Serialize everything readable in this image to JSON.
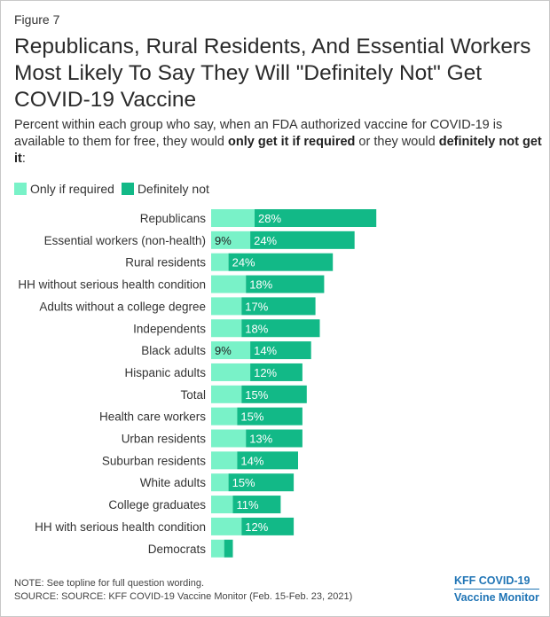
{
  "figure_label": "Figure 7",
  "title": "Republicans, Rural Residents, And Essential Workers Most Likely To Say They Will \"Definitely Not\" Get COVID-19 Vaccine",
  "subtitle": {
    "part1": "Percent within each group who say, when an FDA authorized vaccine for COVID-19 is available to them for free, they would ",
    "bold1": "only get it if required",
    "part2": " or they would ",
    "bold2": "definitely not get it",
    "part3": ":"
  },
  "colors": {
    "only_if_required": "#79f2c8",
    "definitely_not": "#12b987"
  },
  "note": "NOTE: See topline for full question wording.",
  "source": "SOURCE: SOURCE: KFF COVID-19 Vaccine Monitor (Feb. 15-Feb. 23, 2021)",
  "brand": {
    "line1": "KFF COVID-19",
    "line2": "Vaccine Monitor"
  },
  "chart_data": {
    "type": "bar",
    "orientation": "horizontal",
    "stacked": true,
    "categories": [
      "Republicans",
      "Essential workers (non-health)",
      "Rural residents",
      "HH without serious health condition",
      "Adults without a college degree",
      "Independents",
      "Black adults",
      "Hispanic adults",
      "Total",
      "Health care workers",
      "Urban residents",
      "Suburban residents",
      "White adults",
      "College graduates",
      "HH with serious health condition",
      "Democrats"
    ],
    "series": [
      {
        "name": "Only if required",
        "values": [
          10,
          9,
          4,
          8,
          7,
          7,
          9,
          9,
          7,
          6,
          8,
          6,
          4,
          5,
          7,
          3
        ],
        "labels": [
          "",
          "9%",
          "",
          "",
          "",
          "",
          "9%",
          "",
          "",
          "",
          "",
          "",
          "",
          "",
          "",
          ""
        ]
      },
      {
        "name": "Definitely not",
        "values": [
          28,
          24,
          24,
          18,
          17,
          18,
          14,
          12,
          15,
          15,
          13,
          14,
          15,
          11,
          12,
          2
        ],
        "labels": [
          "28%",
          "24%",
          "24%",
          "18%",
          "17%",
          "18%",
          "14%",
          "12%",
          "15%",
          "15%",
          "13%",
          "14%",
          "15%",
          "11%",
          "12%",
          ""
        ]
      }
    ],
    "legend": "top-left",
    "grid": false,
    "xlim": [
      0,
      50
    ]
  }
}
